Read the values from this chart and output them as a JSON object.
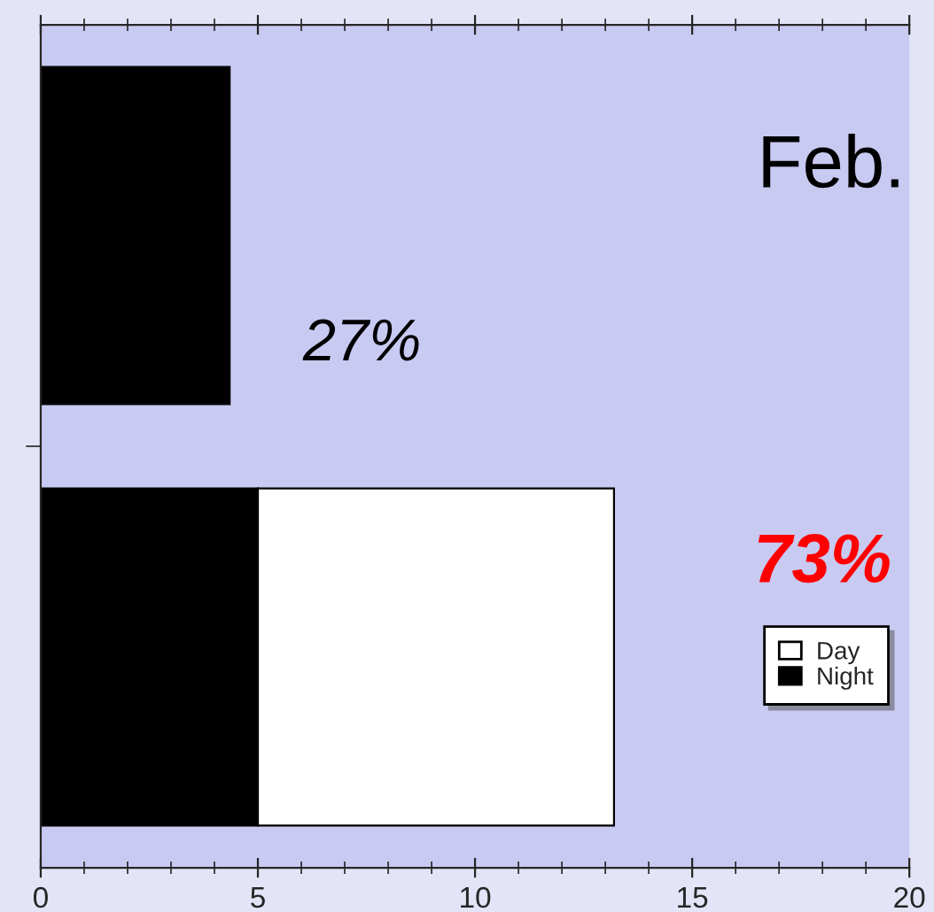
{
  "chart_data": {
    "type": "bar",
    "orientation": "horizontal",
    "stacked": true,
    "categories": [
      null,
      null
    ],
    "series": [
      {
        "name": "Night",
        "color": "#000000",
        "values": [
          4.35,
          5.0
        ]
      },
      {
        "name": "Day",
        "color": "#ffffff",
        "values": [
          null,
          8.2
        ]
      }
    ],
    "xlim": [
      0,
      20
    ],
    "xticks": [
      0,
      5,
      10,
      15,
      20
    ],
    "grid": false,
    "legend": "right",
    "annotations": [
      "Feb.",
      "27%",
      "73%"
    ]
  }
}
